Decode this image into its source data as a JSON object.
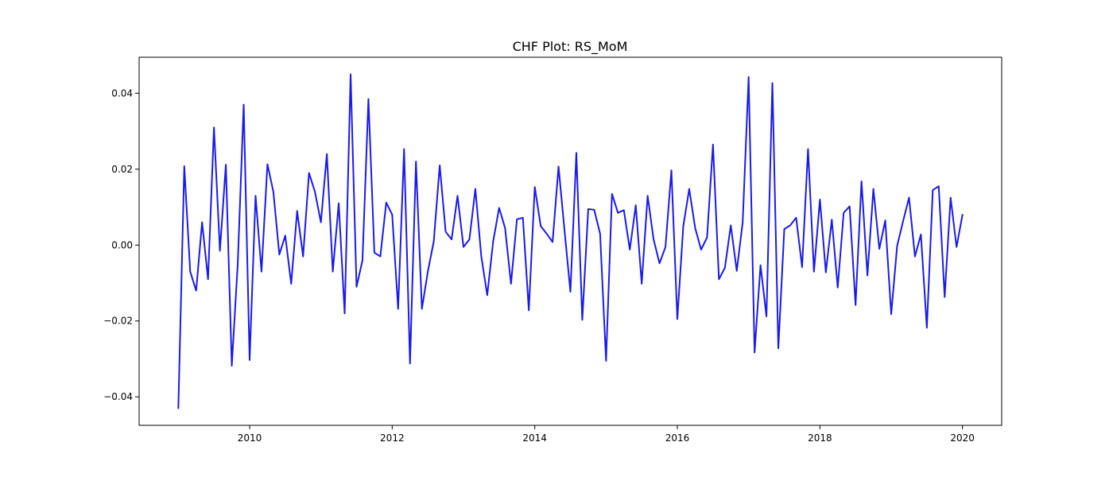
{
  "chart_data": {
    "type": "line",
    "title": "CHF Plot: RS_MoM",
    "xlabel": "",
    "ylabel": "",
    "xlim": [
      2008.45,
      2020.55
    ],
    "ylim": [
      -0.0475,
      0.0495
    ],
    "xticks": [
      2010,
      2012,
      2014,
      2016,
      2018,
      2020
    ],
    "xtick_labels": [
      "2010",
      "2012",
      "2014",
      "2016",
      "2018",
      "2020"
    ],
    "yticks": [
      -0.04,
      -0.02,
      0.0,
      0.02,
      0.04
    ],
    "ytick_labels": [
      "−0.04",
      "−0.02",
      "0.00",
      "0.02",
      "0.04"
    ],
    "grid": false,
    "line_color": "#1a1aee",
    "series": [
      {
        "x": [
          "2009-01",
          "2009-02",
          "2009-03",
          "2009-04",
          "2009-05",
          "2009-06",
          "2009-07",
          "2009-08",
          "2009-09",
          "2009-10",
          "2009-11",
          "2009-12",
          "2010-01",
          "2010-02",
          "2010-03",
          "2010-04",
          "2010-05",
          "2010-06",
          "2010-07",
          "2010-08",
          "2010-09",
          "2010-10",
          "2010-11",
          "2010-12",
          "2011-01",
          "2011-02",
          "2011-03",
          "2011-04",
          "2011-05",
          "2011-06",
          "2011-07",
          "2011-08",
          "2011-09",
          "2011-10",
          "2011-11",
          "2011-12",
          "2012-01",
          "2012-02",
          "2012-03",
          "2012-04",
          "2012-05",
          "2012-06",
          "2012-07",
          "2012-08",
          "2012-09",
          "2012-10",
          "2012-11",
          "2012-12",
          "2013-01",
          "2013-02",
          "2013-03",
          "2013-04",
          "2013-05",
          "2013-06",
          "2013-07",
          "2013-08",
          "2013-09",
          "2013-10",
          "2013-11",
          "2013-12",
          "2014-01",
          "2014-02",
          "2014-03",
          "2014-04",
          "2014-05",
          "2014-06",
          "2014-07",
          "2014-08",
          "2014-09",
          "2014-10",
          "2014-11",
          "2014-12",
          "2015-01",
          "2015-02",
          "2015-03",
          "2015-04",
          "2015-05",
          "2015-06",
          "2015-07",
          "2015-08",
          "2015-09",
          "2015-10",
          "2015-11",
          "2015-12",
          "2016-01",
          "2016-02",
          "2016-03",
          "2016-04",
          "2016-05",
          "2016-06",
          "2016-07",
          "2016-08",
          "2016-09",
          "2016-10",
          "2016-11",
          "2016-12",
          "2017-01",
          "2017-02",
          "2017-03",
          "2017-04",
          "2017-05",
          "2017-06",
          "2017-07",
          "2017-08",
          "2017-09",
          "2017-10",
          "2017-11",
          "2017-12",
          "2018-01",
          "2018-02",
          "2018-03",
          "2018-04",
          "2018-05",
          "2018-06",
          "2018-07",
          "2018-08",
          "2018-09",
          "2018-10",
          "2018-11",
          "2018-12",
          "2019-01",
          "2019-02",
          "2019-03",
          "2019-04",
          "2019-05",
          "2019-06",
          "2019-07",
          "2019-08",
          "2019-09",
          "2019-10",
          "2019-11",
          "2019-12",
          "2020-01"
        ],
        "values": [
          -0.043,
          0.0208,
          -0.007,
          -0.012,
          0.006,
          -0.009,
          0.031,
          -0.0015,
          0.0212,
          -0.0318,
          -0.005,
          0.037,
          -0.0303,
          0.013,
          -0.007,
          0.0213,
          0.014,
          -0.0025,
          0.0025,
          -0.0102,
          0.009,
          -0.003,
          0.019,
          0.014,
          0.006,
          0.024,
          -0.007,
          0.011,
          -0.018,
          0.045,
          -0.011,
          -0.004,
          0.0385,
          -0.002,
          -0.003,
          0.0112,
          0.008,
          -0.0168,
          0.0253,
          -0.0312,
          0.022,
          -0.0168,
          -0.007,
          0.001,
          0.021,
          0.0035,
          0.0015,
          0.013,
          -0.0005,
          0.0015,
          0.0148,
          -0.003,
          -0.0132,
          0.001,
          0.0098,
          0.0045,
          -0.0102,
          0.0068,
          0.0072,
          -0.0172,
          0.0153,
          0.005,
          0.003,
          0.0008,
          0.0207,
          0.004,
          -0.0123,
          0.0243,
          -0.0197,
          0.0095,
          0.0093,
          0.003,
          -0.0305,
          0.0135,
          0.0085,
          0.0092,
          -0.0012,
          0.0105,
          -0.0102,
          0.013,
          0.0015,
          -0.0048,
          -0.0005,
          0.0197,
          -0.0195,
          0.005,
          0.0148,
          0.0045,
          -0.0012,
          0.002,
          0.0265,
          -0.009,
          -0.006,
          0.0052,
          -0.0068,
          0.006,
          0.0443,
          -0.0283,
          -0.0053,
          -0.0188,
          0.0427,
          -0.0272,
          0.0042,
          0.0052,
          0.0072,
          -0.0058,
          0.0253,
          -0.007,
          0.012,
          -0.0072,
          0.0067,
          -0.0112,
          0.0085,
          0.0102,
          -0.0158,
          0.0168,
          -0.008,
          0.0148,
          -0.001,
          0.0065,
          -0.0182,
          -0.0002,
          0.0063,
          0.0125,
          -0.003,
          0.0028,
          -0.0218,
          0.0145,
          0.0155,
          -0.0137,
          0.0125,
          -0.0005,
          0.008
        ]
      }
    ]
  }
}
